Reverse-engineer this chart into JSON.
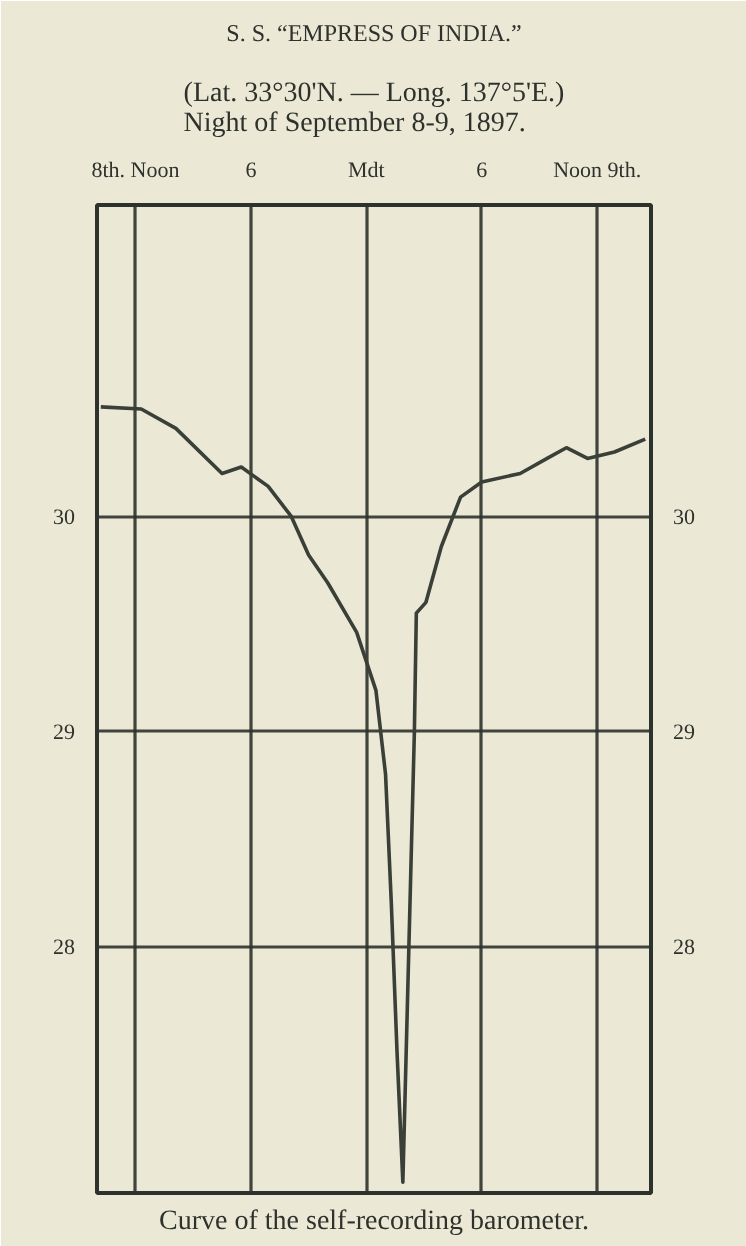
{
  "chart_data": {
    "type": "line",
    "title": "S. S. “EMPRESS OF INDIA.”",
    "subtitle": "(Lat. 33°30'N. — Long. 137°5'E.)\nNight of September 8-9, 1897.",
    "annotations": [
      "Curve of the self-recording barometer."
    ],
    "x": [
      "1897-09-08T10:12",
      "1897-09-08T12:18",
      "1897-09-08T14:06",
      "1897-09-08T16:30",
      "1897-09-08T17:30",
      "1897-09-08T18:54",
      "1897-09-08T20:06",
      "1897-09-08T21:00",
      "1897-09-08T22:00",
      "1897-09-08T23:30",
      "1897-09-09T00:30",
      "1897-09-09T01:00",
      "1897-09-09T01:18",
      "1897-09-09T01:36",
      "1897-09-09T01:54",
      "1897-09-09T02:06",
      "1897-09-09T02:18",
      "1897-09-09T02:30",
      "1897-09-09T02:36",
      "1897-09-09T03:06",
      "1897-09-09T03:54",
      "1897-09-09T04:54",
      "1897-09-09T06:00",
      "1897-09-09T08:00",
      "1897-09-09T09:24",
      "1897-09-09T10:24",
      "1897-09-09T11:30",
      "1897-09-09T12:54",
      "1897-09-09T14:30"
    ],
    "series": [
      {
        "color": "#3a3f38",
        "values": [
          30.51,
          30.5,
          30.41,
          30.2,
          30.23,
          30.14,
          30.0,
          29.82,
          29.69,
          29.46,
          29.19,
          28.8,
          28.2,
          27.5,
          26.9,
          27.6,
          28.3,
          29.0,
          29.55,
          29.6,
          29.86,
          30.09,
          30.16,
          30.2,
          30.27,
          30.32,
          30.27,
          30.3,
          30.36
        ]
      }
    ],
    "xlim": [
      "1897-09-08T10:00",
      "1897-09-09T14:48"
    ],
    "xticks": [
      {
        "value": "1897-09-08T12:00",
        "label": "8th. Noon"
      },
      {
        "value": "1897-09-08T18:00",
        "label": "6"
      },
      {
        "value": "1897-09-09T00:00",
        "label": "Mdt"
      },
      {
        "value": "1897-09-09T06:00",
        "label": "6"
      },
      {
        "value": "1897-09-09T12:00",
        "label": "Noon 9th."
      }
    ],
    "ylim": [
      26.85,
      31.45
    ],
    "yticks": [
      28,
      29,
      30
    ],
    "y2lim": [
      26.85,
      31.45
    ],
    "y2ticks": [
      28,
      29,
      30
    ],
    "grid": true,
    "marker": "none",
    "line_style": "solid"
  }
}
